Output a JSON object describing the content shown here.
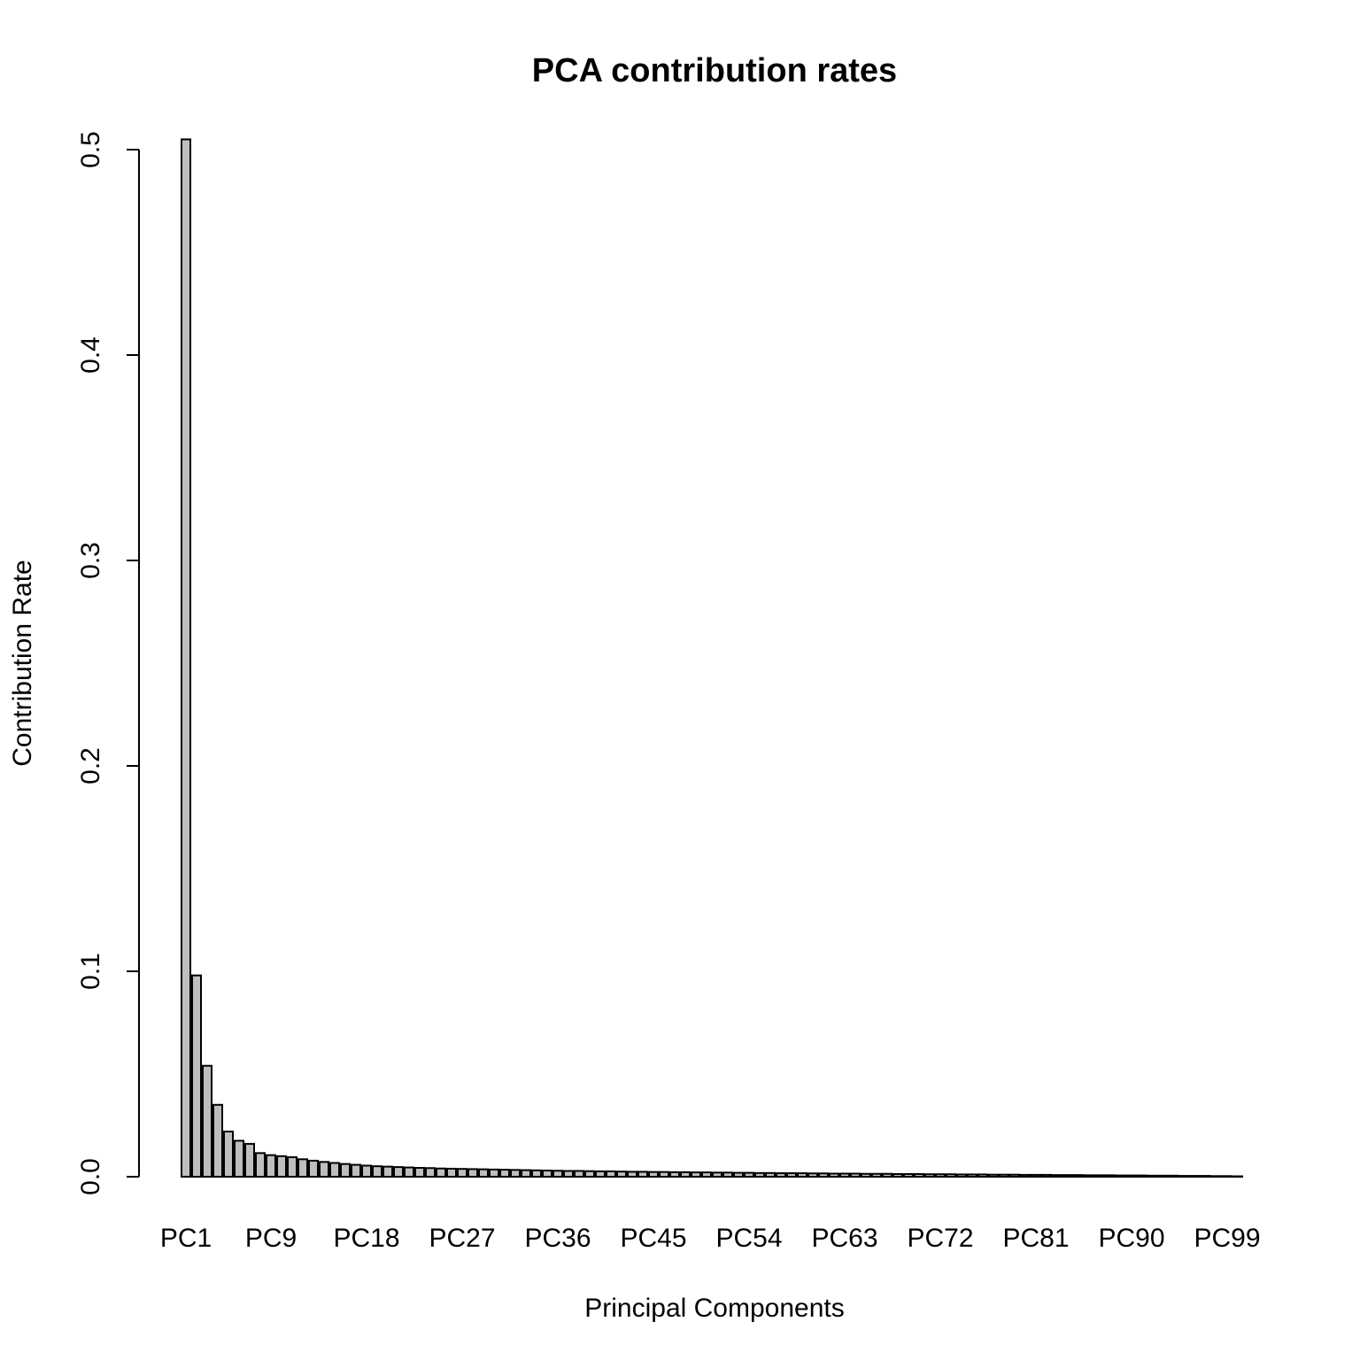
{
  "chart_data": {
    "type": "bar",
    "title": "PCA contribution rates",
    "xlabel": "Principal Components",
    "ylabel": "Contribution Rate",
    "ylim": [
      0,
      0.5
    ],
    "yticks": [
      0.0,
      0.1,
      0.2,
      0.3,
      0.4,
      0.5
    ],
    "ytick_labels": [
      "0.0",
      "0.1",
      "0.2",
      "0.3",
      "0.4",
      "0.5"
    ],
    "xtick_labels": [
      "PC1",
      "PC9",
      "PC18",
      "PC27",
      "PC36",
      "PC45",
      "PC54",
      "PC63",
      "PC72",
      "PC81",
      "PC90",
      "PC99"
    ],
    "xtick_indices": [
      1,
      9,
      18,
      27,
      36,
      45,
      54,
      63,
      72,
      81,
      90,
      99
    ],
    "n_components": 100,
    "bar_color": "#bebebe",
    "grid": false,
    "values": [
      0.505,
      0.098,
      0.054,
      0.035,
      0.022,
      0.0175,
      0.016,
      0.0115,
      0.0105,
      0.01,
      0.0095,
      0.0085,
      0.0078,
      0.0072,
      0.0067,
      0.0062,
      0.0058,
      0.0054,
      0.0051,
      0.0049,
      0.0047,
      0.0045,
      0.0043,
      0.0042,
      0.004,
      0.0039,
      0.0038,
      0.0037,
      0.0036,
      0.0035,
      0.0034,
      0.0033,
      0.0032,
      0.0031,
      0.003,
      0.0029,
      0.0028,
      0.0028,
      0.0027,
      0.0026,
      0.0026,
      0.0025,
      0.0024,
      0.0024,
      0.0023,
      0.0023,
      0.0022,
      0.0022,
      0.0021,
      0.0021,
      0.002,
      0.002,
      0.0019,
      0.0019,
      0.0018,
      0.0018,
      0.0017,
      0.0017,
      0.0017,
      0.0016,
      0.0016,
      0.0015,
      0.0015,
      0.0015,
      0.0014,
      0.0014,
      0.0014,
      0.0013,
      0.0013,
      0.0013,
      0.0012,
      0.0012,
      0.0012,
      0.0011,
      0.0011,
      0.0011,
      0.001,
      0.001,
      0.001,
      0.0009,
      0.0009,
      0.0009,
      0.0008,
      0.0008,
      0.0008,
      0.0007,
      0.0007,
      0.0007,
      0.0006,
      0.0006,
      0.0006,
      0.0005,
      0.0005,
      0.0005,
      0.0004,
      0.0004,
      0.0004,
      0.0003,
      0.0003,
      0.0002
    ]
  }
}
